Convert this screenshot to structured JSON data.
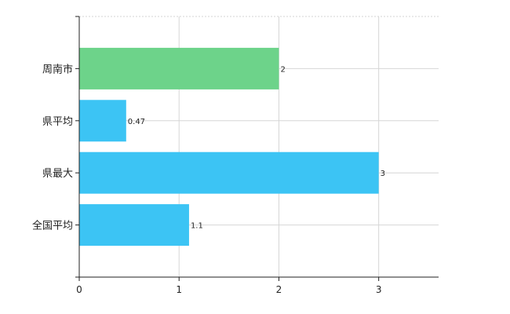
{
  "chart_data": {
    "type": "bar",
    "orientation": "horizontal",
    "categories": [
      "周南市",
      "県平均",
      "県最大",
      "全国平均"
    ],
    "values": [
      2,
      0.47,
      3,
      1.1
    ],
    "value_labels": [
      "2",
      "0.47",
      "3",
      "1.1"
    ],
    "bar_colors": [
      "#6dd38a",
      "#3cc4f4",
      "#3cc4f4",
      "#3cc4f4"
    ],
    "x_ticks": [
      0,
      1,
      2,
      3
    ],
    "x_tick_labels": [
      "0",
      "1",
      "2",
      "3"
    ],
    "xlim": [
      0,
      3.6
    ],
    "grid": true,
    "title": "",
    "xlabel": "",
    "ylabel": ""
  }
}
